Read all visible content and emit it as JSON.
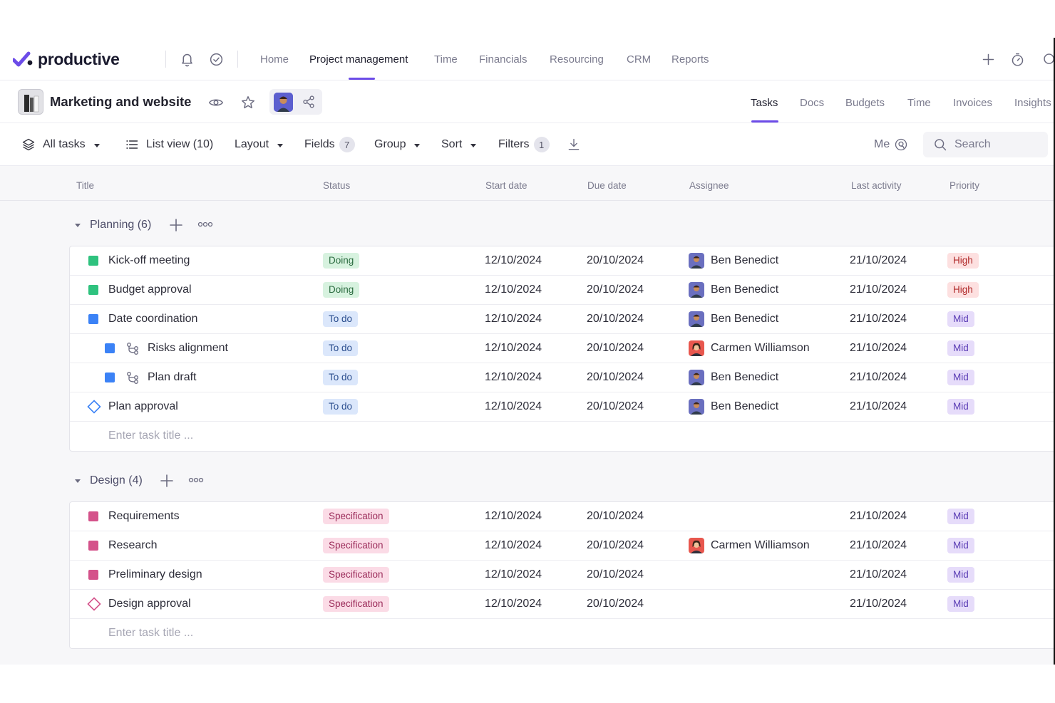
{
  "brand": {
    "name": "productive",
    "accent": "#6c4ce8"
  },
  "topnav": {
    "links": [
      "Home",
      "Project management",
      "Time",
      "Financials",
      "Resourcing",
      "CRM",
      "Reports"
    ],
    "active": "Project management",
    "icons": [
      "bell-icon",
      "check-circle-icon",
      "plus-icon",
      "timer-icon",
      "search-icon"
    ]
  },
  "project": {
    "title": "Marketing and website",
    "tabs": [
      "Tasks",
      "Docs",
      "Budgets",
      "Time",
      "Invoices",
      "Insights"
    ],
    "active_tab": "Tasks"
  },
  "toolbar": {
    "all_tasks": "All tasks",
    "list_view": "List view (10)",
    "layout": "Layout",
    "fields": "Fields",
    "fields_count": "7",
    "group": "Group",
    "sort": "Sort",
    "filters": "Filters",
    "filters_count": "1",
    "me": "Me",
    "search_placeholder": "Search"
  },
  "columns": [
    "Title",
    "Status",
    "Start date",
    "Due date",
    "Assignee",
    "Last activity",
    "Priority"
  ],
  "groups": [
    {
      "title": "Planning (6)",
      "enter_placeholder": "Enter task title ...",
      "tasks": [
        {
          "title": "Kick-off meeting",
          "status": "Doing",
          "start": "12/10/2024",
          "due": "20/10/2024",
          "assignee": "Ben Benedict",
          "last_activity": "21/10/2024",
          "priority": "High"
        },
        {
          "title": "Budget approval",
          "status": "Doing",
          "start": "12/10/2024",
          "due": "20/10/2024",
          "assignee": "Ben Benedict",
          "last_activity": "21/10/2024",
          "priority": "High"
        },
        {
          "title": "Date coordination",
          "status": "To do",
          "start": "12/10/2024",
          "due": "20/10/2024",
          "assignee": "Ben Benedict",
          "last_activity": "21/10/2024",
          "priority": "Mid"
        },
        {
          "title": "Risks alignment",
          "status": "To do",
          "start": "12/10/2024",
          "due": "20/10/2024",
          "assignee": "Carmen Williamson",
          "last_activity": "21/10/2024",
          "priority": "Mid"
        },
        {
          "title": "Plan draft",
          "status": "To do",
          "start": "12/10/2024",
          "due": "20/10/2024",
          "assignee": "Ben Benedict",
          "last_activity": "21/10/2024",
          "priority": "Mid"
        },
        {
          "title": "Plan approval",
          "status": "To do",
          "start": "12/10/2024",
          "due": "20/10/2024",
          "assignee": "Ben Benedict",
          "last_activity": "21/10/2024",
          "priority": "Mid"
        }
      ]
    },
    {
      "title": "Design (4)",
      "enter_placeholder": "Enter task title ...",
      "tasks": [
        {
          "title": "Requirements",
          "status": "Specification",
          "start": "12/10/2024",
          "due": "20/10/2024",
          "assignee": "",
          "last_activity": "21/10/2024",
          "priority": "Mid"
        },
        {
          "title": "Research",
          "status": "Specification",
          "start": "12/10/2024",
          "due": "20/10/2024",
          "assignee": "Carmen Williamson",
          "last_activity": "21/10/2024",
          "priority": "Mid"
        },
        {
          "title": "Preliminary design",
          "status": "Specification",
          "start": "12/10/2024",
          "due": "20/10/2024",
          "assignee": "",
          "last_activity": "21/10/2024",
          "priority": "Mid"
        },
        {
          "title": "Design approval",
          "status": "Specification",
          "start": "12/10/2024",
          "due": "20/10/2024",
          "assignee": "",
          "last_activity": "21/10/2024",
          "priority": "Mid"
        }
      ]
    }
  ],
  "colors": {
    "green_task": "#2ec27e",
    "blue_task": "#3b82f6",
    "pink_task": "#d4528a",
    "doing_bg": "#d7f2df",
    "doing_fg": "#2a6b3f",
    "todo_bg": "#dbe7fb",
    "todo_fg": "#2c4f8f",
    "spec_bg": "#fbdbe6",
    "spec_fg": "#9b2c5a",
    "high_bg": "#fde0e0",
    "high_fg": "#b02a2a",
    "mid_bg": "#e6dcfa",
    "mid_fg": "#5b3db5"
  }
}
